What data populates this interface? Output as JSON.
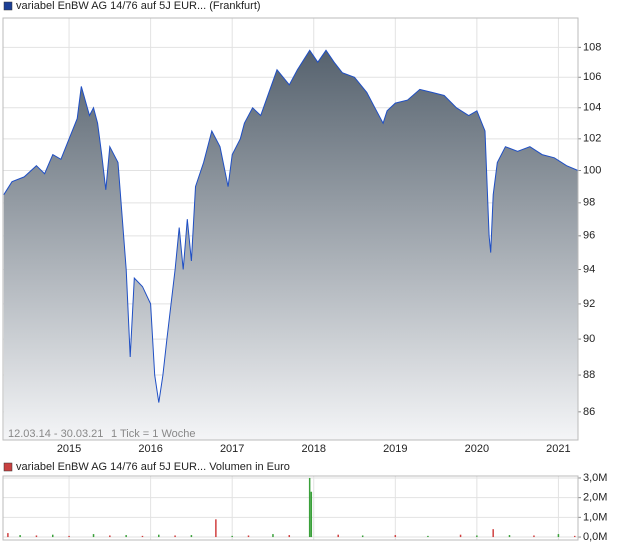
{
  "chart_data": [
    {
      "type": "area",
      "title": "variabel EnBW AG 14/76 auf 5J EUR... (Frankfurt)",
      "legend_color": "#1c3f95",
      "color": "#1f4fc4",
      "fill_top": "#56626e",
      "date_range": "12.03.14 - 30.03.21",
      "tick_note": "1 Tick = 1 Woche",
      "log_scale": true,
      "grid": true,
      "x": [
        2014.2,
        2014.3,
        2014.45,
        2014.6,
        2014.7,
        2014.8,
        2014.9,
        2015.0,
        2015.1,
        2015.15,
        2015.25,
        2015.3,
        2015.35,
        2015.4,
        2015.45,
        2015.5,
        2015.6,
        2015.7,
        2015.75,
        2015.8,
        2015.9,
        2016.0,
        2016.05,
        2016.1,
        2016.15,
        2016.2,
        2016.3,
        2016.35,
        2016.4,
        2016.45,
        2016.5,
        2016.55,
        2016.65,
        2016.75,
        2016.85,
        2016.95,
        2017.0,
        2017.1,
        2017.15,
        2017.25,
        2017.35,
        2017.45,
        2017.55,
        2017.7,
        2017.8,
        2017.95,
        2018.05,
        2018.15,
        2018.25,
        2018.35,
        2018.5,
        2018.65,
        2018.75,
        2018.85,
        2018.9,
        2019.0,
        2019.15,
        2019.3,
        2019.45,
        2019.6,
        2019.75,
        2019.9,
        2020.0,
        2020.1,
        2020.15,
        2020.17,
        2020.2,
        2020.25,
        2020.35,
        2020.5,
        2020.65,
        2020.8,
        2020.95,
        2021.1,
        2021.24
      ],
      "values": [
        98.5,
        99.3,
        99.6,
        100.3,
        99.8,
        101.0,
        100.7,
        102.0,
        103.3,
        105.4,
        103.5,
        104.0,
        103.0,
        101.0,
        98.8,
        101.5,
        100.5,
        94.0,
        89.0,
        93.5,
        93.0,
        92.0,
        88.0,
        86.5,
        88.0,
        90.0,
        94.0,
        96.5,
        94.0,
        97.0,
        94.5,
        99.0,
        100.5,
        102.5,
        101.5,
        99.0,
        101.0,
        102.0,
        103.0,
        104.0,
        103.5,
        105.0,
        106.5,
        105.5,
        106.5,
        107.8,
        107.0,
        107.8,
        107.0,
        106.3,
        106.0,
        105.0,
        104.0,
        103.0,
        103.8,
        104.3,
        104.5,
        105.2,
        105.0,
        104.8,
        104.0,
        103.5,
        103.8,
        102.5,
        96.0,
        95.0,
        98.5,
        100.5,
        101.5,
        101.2,
        101.5,
        101.0,
        100.8,
        100.3,
        100.0
      ],
      "xlim": [
        2014.19,
        2021.24
      ],
      "ylim": [
        84.5,
        110
      ],
      "xticks": [
        2015,
        2016,
        2017,
        2018,
        2019,
        2020,
        2021
      ],
      "yticks": [
        86,
        88,
        90,
        92,
        94,
        96,
        98,
        100,
        102,
        104,
        106,
        108
      ]
    },
    {
      "type": "bar",
      "title": "variabel EnBW AG 14/76 auf 5J EUR... Volumen in Euro",
      "legend_color": "#c84040",
      "x": [
        2014.25,
        2014.4,
        2014.6,
        2014.8,
        2015.0,
        2015.3,
        2015.5,
        2015.7,
        2015.9,
        2016.1,
        2016.3,
        2016.5,
        2016.8,
        2017.0,
        2017.2,
        2017.5,
        2017.7,
        2017.95,
        2017.97,
        2018.3,
        2018.6,
        2019.0,
        2019.4,
        2019.8,
        2020.0,
        2020.2,
        2020.4,
        2020.7,
        2021.0,
        2021.2
      ],
      "values": [
        200000,
        100000,
        80000,
        120000,
        60000,
        150000,
        80000,
        100000,
        60000,
        120000,
        80000,
        100000,
        900000,
        60000,
        80000,
        150000,
        100000,
        3000000,
        2300000,
        120000,
        80000,
        100000,
        60000,
        120000,
        80000,
        400000,
        100000,
        80000,
        150000,
        60000
      ],
      "colors": [
        "#d04040",
        "#3aa03a",
        "#d04040",
        "#3aa03a",
        "#d04040",
        "#3aa03a",
        "#d04040",
        "#3aa03a",
        "#d04040",
        "#3aa03a",
        "#d04040",
        "#3aa03a",
        "#d04040",
        "#3aa03a",
        "#d04040",
        "#3aa03a",
        "#d04040",
        "#3aa03a",
        "#3aa03a",
        "#d04040",
        "#3aa03a",
        "#d04040",
        "#3aa03a",
        "#d04040",
        "#3aa03a",
        "#d04040",
        "#3aa03a",
        "#d04040",
        "#3aa03a",
        "#d04040"
      ],
      "xlim": [
        2014.19,
        2021.24
      ],
      "ylim": [
        -150000,
        3100000
      ],
      "yticks": [
        {
          "value": 0,
          "label": "0,0M"
        },
        {
          "value": 1000000,
          "label": "1,0M"
        },
        {
          "value": 2000000,
          "label": "2,0M"
        },
        {
          "value": 3000000,
          "label": "3,0M"
        }
      ]
    }
  ]
}
